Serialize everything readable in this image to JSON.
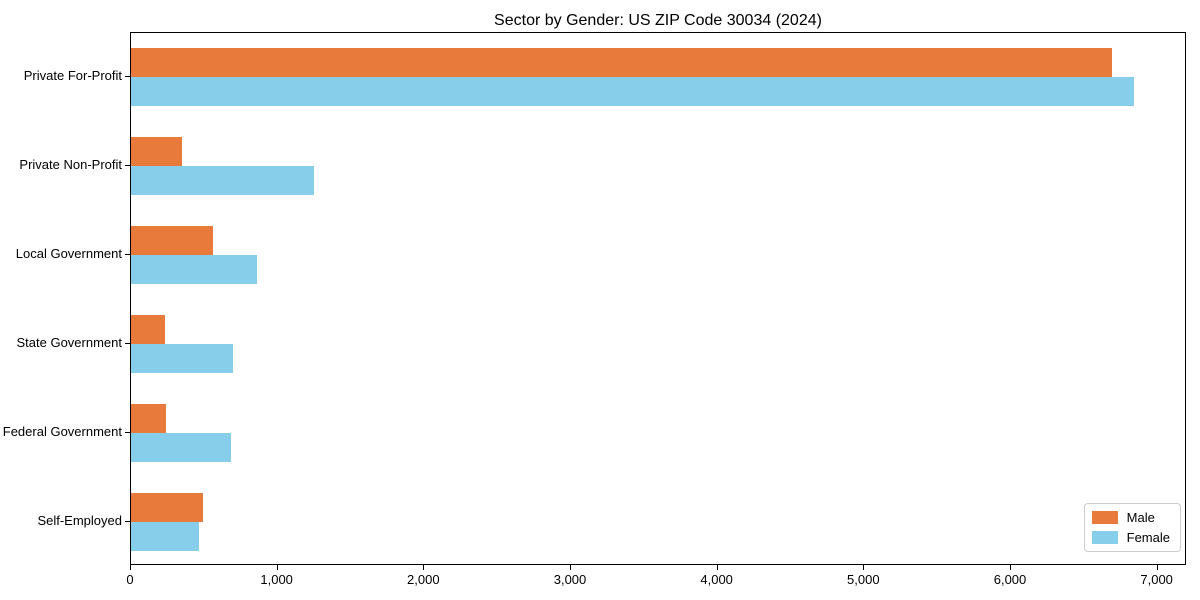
{
  "chart_data": {
    "type": "bar",
    "orientation": "horizontal",
    "title": "Sector by Gender: US ZIP Code 30034 (2024)",
    "categories": [
      "Private For-Profit",
      "Private Non-Profit",
      "Local Government",
      "State Government",
      "Federal Government",
      "Self-Employed"
    ],
    "series": [
      {
        "name": "Male",
        "color": "#e87a3c",
        "values": [
          6700,
          350,
          560,
          230,
          240,
          490
        ]
      },
      {
        "name": "Female",
        "color": "#87ceeb",
        "values": [
          6850,
          1250,
          860,
          700,
          680,
          465
        ]
      }
    ],
    "xlabel": "",
    "ylabel": "",
    "xlim": [
      0,
      7200
    ],
    "x_ticks": [
      0,
      1000,
      2000,
      3000,
      4000,
      5000,
      6000,
      7000
    ],
    "x_tick_labels": [
      "0",
      "1,000",
      "2,000",
      "3,000",
      "4,000",
      "5,000",
      "6,000",
      "7,000"
    ],
    "grid": false,
    "legend": {
      "position": "lower right",
      "entries": [
        "Male",
        "Female"
      ]
    }
  }
}
